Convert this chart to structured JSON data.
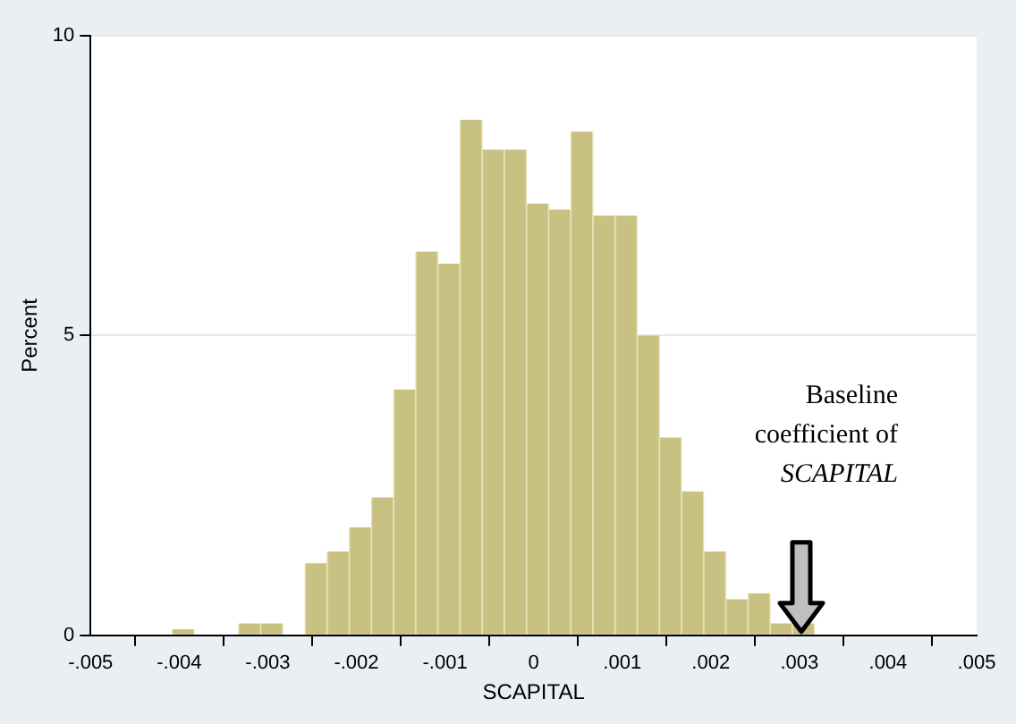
{
  "chart_data": {
    "type": "histogram",
    "xlabel": "SCAPITAL",
    "ylabel": "Percent",
    "bins": [
      -0.00408,
      -0.00383,
      -0.00358,
      -0.00333,
      -0.00308,
      -0.00283,
      -0.00258,
      -0.00233,
      -0.00208,
      -0.00183,
      -0.00158,
      -0.00133,
      -0.00108,
      -0.00083,
      -0.00058,
      -0.00033,
      -8e-05,
      0.00017,
      0.00042,
      0.00067,
      0.00092,
      0.00117,
      0.00142,
      0.00167,
      0.00192,
      0.00217,
      0.00242,
      0.00267,
      0.00292,
      0.00317
    ],
    "values": [
      0.1,
      0,
      0,
      0.2,
      0.2,
      0,
      1.2,
      1.4,
      1.8,
      2.3,
      4.1,
      6.4,
      6.2,
      8.6,
      8.1,
      8.1,
      7.2,
      7.1,
      8.4,
      7.0,
      7.0,
      5.0,
      3.3,
      2.4,
      1.4,
      0.6,
      0.7,
      0.2,
      0.2
    ],
    "color": "#c9c182",
    "xlim": [
      -0.005,
      0.005
    ],
    "xticks": [
      {
        "value": -0.005,
        "label": "-.005"
      },
      {
        "value": -0.004,
        "label": "-.004"
      },
      {
        "value": -0.003,
        "label": "-.003"
      },
      {
        "value": -0.002,
        "label": "-.002"
      },
      {
        "value": -0.001,
        "label": "-.001"
      },
      0,
      {
        "value": 0.001,
        "label": ".001"
      },
      {
        "value": 0.002,
        "label": ".002"
      },
      {
        "value": 0.003,
        "label": ".003"
      },
      {
        "value": 0.004,
        "label": ".004"
      },
      {
        "value": 0.005,
        "label": ".005"
      }
    ],
    "ylim": [
      0,
      10
    ],
    "yticks": [
      0,
      5,
      10
    ],
    "grid": "y",
    "legend": false,
    "annotations": [
      "Baseline\ncoefficient of\nSCAPITAL"
    ]
  }
}
